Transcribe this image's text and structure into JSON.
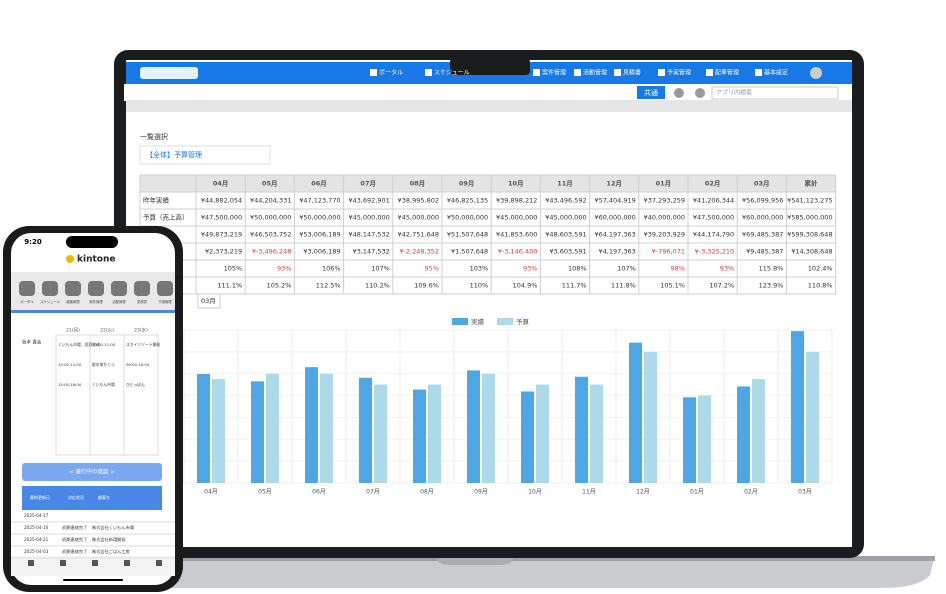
{
  "laptop": {
    "nav": [
      "ポータル",
      "スケジュール",
      "案件管理",
      "活動管理",
      "見積書",
      "予実管理",
      "配車管理",
      "基本設定"
    ],
    "tab": "共通",
    "search": "アプリ内検索",
    "view_label": "一覧選択",
    "view_select": "【全体】予算管理",
    "table": {
      "header": [
        "04月",
        "05月",
        "06月",
        "07月",
        "08月",
        "09月",
        "10月",
        "11月",
        "12月",
        "01月",
        "02月",
        "03月",
        "累計"
      ],
      "rows": [
        {
          "label": "昨年実績",
          "cells": [
            "¥44,882,054",
            "¥44,204,331",
            "¥47,123,770",
            "¥43,692,901",
            "¥38,995,802",
            "¥46,825,135",
            "¥39,898,212",
            "¥43,496,592",
            "¥57,404,919",
            "¥37,293,259",
            "¥41,206,344",
            "¥56,099,956",
            "¥541,123,275"
          ]
        },
        {
          "label": "予算（売上高）",
          "cells": [
            "¥47,500,000",
            "¥50,000,000",
            "¥50,000,000",
            "¥45,000,000",
            "¥45,000,000",
            "¥50,000,000",
            "¥45,000,000",
            "¥45,000,000",
            "¥60,000,000",
            "¥40,000,000",
            "¥47,500,000",
            "¥60,000,000",
            "¥585,000,000"
          ]
        },
        {
          "label": "上高）",
          "cells": [
            "¥49,873,219",
            "¥46,503,752",
            "¥53,006,189",
            "¥48,147,532",
            "¥42,751,648",
            "¥51,507,648",
            "¥41,853,600",
            "¥48,603,591",
            "¥64,197,363",
            "¥39,203,929",
            "¥44,174,790",
            "¥69,485,387",
            "¥599,308,648"
          ]
        },
        {
          "label": null,
          "cells": [
            "¥2,373,219",
            "¥-3,496,248",
            "¥3,006,189",
            "¥3,147,532",
            "¥-2,248,352",
            "¥1,507,648",
            "¥-3,146,400",
            "¥3,603,591",
            "¥4,197,363",
            "¥-796,071",
            "¥-3,325,210",
            "¥9,485,387",
            "¥14,308,648"
          ]
        },
        {
          "label": null,
          "cells": [
            "105%",
            "93%",
            "106%",
            "107%",
            "95%",
            "103%",
            "93%",
            "108%",
            "107%",
            "98%",
            "93%",
            "115.8%",
            "102.4%"
          ]
        },
        {
          "label": null,
          "cells": [
            "111.1%",
            "105.2%",
            "112.5%",
            "110.2%",
            "109.6%",
            "110%",
            "104.9%",
            "111.7%",
            "111.8%",
            "105.1%",
            "107.2%",
            "123.9%",
            "110.8%"
          ]
        }
      ]
    },
    "month_select": "03月"
  },
  "chart_data": {
    "type": "bar",
    "categories": [
      "04月",
      "05月",
      "06月",
      "07月",
      "08月",
      "09月",
      "10月",
      "11月",
      "12月",
      "01月",
      "02月",
      "03月"
    ],
    "series": [
      {
        "name": "実績",
        "color": "#4ea6e6",
        "values": [
          49873219,
          46503752,
          53006189,
          48147532,
          42751648,
          51507648,
          41853600,
          48603591,
          64197363,
          39203929,
          44174790,
          69485387
        ]
      },
      {
        "name": "予算",
        "color": "#acdaea",
        "values": [
          47500000,
          50000000,
          50000000,
          45000000,
          45000000,
          50000000,
          45000000,
          45000000,
          60000000,
          40000000,
          47500000,
          60000000
        ]
      }
    ],
    "ylim": [
      0,
      70000000
    ],
    "grid": true
  },
  "phone": {
    "time": "9:20",
    "app": "kintone",
    "icons": [
      "ポータル",
      "スケジュール",
      "顧客管理",
      "案件管理",
      "活動管理",
      "見積書",
      "予実管理"
    ],
    "days": [
      "21(月)",
      "22(火)",
      "23(水)"
    ],
    "person": "坂本 貴会",
    "events": [
      [
        "くいもん市場：見積作成",
        "10:00-11:00",
        "15:00-16:00"
      ],
      [
        "10:00-11:00",
        "取の栄かくら",
        "くいもん市場"
      ],
      [
        "スカイリゾート開発",
        "09:00-10:00",
        "ひとっぽん"
      ]
    ],
    "button": "< 進行中の商談 >",
    "table_header": [
      "最終更新日",
      "対応状況",
      "顧客名"
    ],
    "rows": [
      [
        "2025-04-17",
        "",
        ""
      ],
      [
        "2025-04-16",
        "初期連絡完了",
        "株式会社くいもん市場"
      ],
      [
        "2025-04-21",
        "初期連絡完了",
        "株式会社新環開発"
      ],
      [
        "2025-04-03",
        "初期連絡完了",
        "株式会社ごはん工房"
      ]
    ]
  }
}
